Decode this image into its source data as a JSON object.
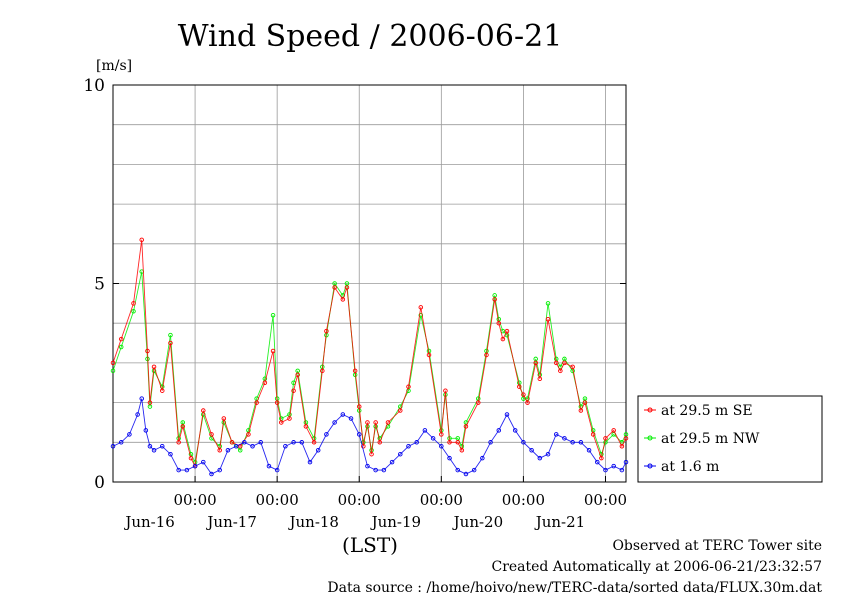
{
  "chart_data": {
    "type": "line",
    "title": "Wind Speed / 2006-06-21",
    "ylabel": "[m/s]",
    "xlabel": "(LST)",
    "ylim": [
      0,
      10
    ],
    "yticks": [
      0,
      5,
      10
    ],
    "xlim": [
      0,
      6.25
    ],
    "x_unit_note": "days from Jun-15 18:00 LST",
    "midnight_ticks": [
      {
        "x": 1,
        "time": "00:00",
        "date": "Jun-16"
      },
      {
        "x": 2,
        "time": "00:00",
        "date": "Jun-17"
      },
      {
        "x": 3,
        "time": "00:00",
        "date": "Jun-18"
      },
      {
        "x": 4,
        "time": "00:00",
        "date": "Jun-19"
      },
      {
        "x": 5,
        "time": "00:00",
        "date": "Jun-20"
      },
      {
        "x": 6,
        "time": "00:00",
        "date": "Jun-21"
      }
    ],
    "grid": true,
    "legend_position": "right",
    "series": [
      {
        "name": "at 29.5 m SE",
        "color": "#ff0000",
        "marker": "circle",
        "x": [
          0.0,
          0.1,
          0.25,
          0.35,
          0.42,
          0.45,
          0.5,
          0.6,
          0.7,
          0.8,
          0.85,
          0.95,
          1.0,
          1.1,
          1.2,
          1.3,
          1.35,
          1.45,
          1.55,
          1.65,
          1.75,
          1.85,
          1.95,
          2.0,
          2.05,
          2.15,
          2.2,
          2.25,
          2.35,
          2.45,
          2.55,
          2.6,
          2.7,
          2.8,
          2.85,
          2.95,
          3.0,
          3.05,
          3.1,
          3.15,
          3.2,
          3.25,
          3.35,
          3.5,
          3.6,
          3.75,
          3.85,
          4.0,
          4.05,
          4.1,
          4.2,
          4.25,
          4.3,
          4.45,
          4.55,
          4.65,
          4.7,
          4.75,
          4.8,
          4.95,
          5.0,
          5.05,
          5.15,
          5.2,
          5.3,
          5.4,
          5.45,
          5.5,
          5.6,
          5.7,
          5.75,
          5.85,
          5.95,
          6.0,
          6.1,
          6.2,
          6.25
        ],
        "y": [
          3.0,
          3.6,
          4.5,
          6.1,
          3.3,
          2.0,
          2.9,
          2.3,
          3.5,
          1.0,
          1.4,
          0.6,
          0.4,
          1.8,
          1.2,
          0.8,
          1.6,
          1.0,
          0.9,
          1.2,
          2.0,
          2.5,
          3.3,
          2.0,
          1.5,
          1.6,
          2.3,
          2.7,
          1.4,
          1.0,
          2.8,
          3.8,
          4.9,
          4.6,
          4.9,
          2.8,
          1.9,
          0.9,
          1.5,
          0.7,
          1.5,
          1.0,
          1.5,
          1.8,
          2.4,
          4.4,
          3.2,
          1.2,
          2.3,
          1.0,
          1.0,
          0.8,
          1.4,
          2.0,
          3.2,
          4.6,
          4.0,
          3.6,
          3.8,
          2.4,
          2.2,
          2.0,
          3.0,
          2.6,
          4.1,
          3.0,
          2.8,
          3.0,
          2.9,
          1.8,
          2.0,
          1.2,
          0.6,
          1.1,
          1.3,
          0.9,
          1.1
        ]
      },
      {
        "name": "at 29.5 m NW",
        "color": "#00ee00",
        "marker": "circle",
        "x": [
          0.0,
          0.1,
          0.25,
          0.35,
          0.42,
          0.45,
          0.5,
          0.6,
          0.7,
          0.8,
          0.85,
          0.95,
          1.0,
          1.1,
          1.2,
          1.3,
          1.35,
          1.45,
          1.55,
          1.65,
          1.75,
          1.85,
          1.95,
          2.0,
          2.05,
          2.15,
          2.2,
          2.25,
          2.35,
          2.45,
          2.55,
          2.6,
          2.7,
          2.8,
          2.85,
          2.95,
          3.0,
          3.05,
          3.1,
          3.15,
          3.2,
          3.25,
          3.35,
          3.5,
          3.6,
          3.75,
          3.85,
          4.0,
          4.05,
          4.1,
          4.2,
          4.25,
          4.3,
          4.45,
          4.55,
          4.65,
          4.7,
          4.75,
          4.8,
          4.95,
          5.0,
          5.05,
          5.15,
          5.2,
          5.3,
          5.4,
          5.45,
          5.5,
          5.6,
          5.7,
          5.75,
          5.85,
          5.95,
          6.0,
          6.1,
          6.2,
          6.25
        ],
        "y": [
          2.8,
          3.4,
          4.3,
          5.3,
          3.1,
          1.9,
          2.8,
          2.4,
          3.7,
          1.1,
          1.5,
          0.7,
          0.5,
          1.7,
          1.1,
          0.9,
          1.5,
          1.0,
          0.8,
          1.3,
          2.1,
          2.6,
          4.2,
          2.1,
          1.6,
          1.7,
          2.5,
          2.8,
          1.5,
          1.1,
          2.9,
          3.7,
          5.0,
          4.7,
          5.0,
          2.7,
          1.8,
          1.0,
          1.4,
          0.8,
          1.4,
          1.1,
          1.4,
          1.9,
          2.3,
          4.2,
          3.3,
          1.3,
          2.2,
          1.1,
          1.1,
          0.9,
          1.5,
          2.1,
          3.3,
          4.7,
          4.1,
          3.8,
          3.7,
          2.5,
          2.1,
          2.1,
          3.1,
          2.7,
          4.5,
          3.1,
          2.9,
          3.1,
          2.8,
          1.9,
          2.1,
          1.3,
          0.7,
          1.0,
          1.2,
          1.0,
          1.2
        ]
      },
      {
        "name": "at 1.6 m",
        "color": "#0000ee",
        "marker": "circle",
        "x": [
          0.0,
          0.1,
          0.2,
          0.3,
          0.35,
          0.4,
          0.45,
          0.5,
          0.6,
          0.7,
          0.8,
          0.9,
          1.0,
          1.1,
          1.2,
          1.3,
          1.4,
          1.5,
          1.6,
          1.7,
          1.8,
          1.9,
          2.0,
          2.1,
          2.2,
          2.3,
          2.4,
          2.5,
          2.6,
          2.7,
          2.8,
          2.9,
          3.0,
          3.1,
          3.2,
          3.3,
          3.4,
          3.5,
          3.6,
          3.7,
          3.8,
          3.9,
          4.0,
          4.1,
          4.2,
          4.3,
          4.4,
          4.5,
          4.6,
          4.7,
          4.8,
          4.9,
          5.0,
          5.1,
          5.2,
          5.3,
          5.4,
          5.5,
          5.6,
          5.7,
          5.8,
          5.9,
          6.0,
          6.1,
          6.2,
          6.25
        ],
        "y": [
          0.9,
          1.0,
          1.2,
          1.7,
          2.1,
          1.3,
          0.9,
          0.8,
          0.9,
          0.7,
          0.3,
          0.3,
          0.4,
          0.5,
          0.2,
          0.3,
          0.8,
          0.9,
          1.0,
          0.9,
          1.0,
          0.4,
          0.3,
          0.9,
          1.0,
          1.0,
          0.5,
          0.8,
          1.2,
          1.5,
          1.7,
          1.6,
          1.2,
          0.4,
          0.3,
          0.3,
          0.5,
          0.7,
          0.9,
          1.0,
          1.3,
          1.1,
          0.9,
          0.6,
          0.3,
          0.2,
          0.3,
          0.6,
          1.0,
          1.3,
          1.7,
          1.3,
          1.0,
          0.8,
          0.6,
          0.7,
          1.2,
          1.1,
          1.0,
          1.0,
          0.8,
          0.5,
          0.3,
          0.4,
          0.3,
          0.5
        ]
      }
    ]
  },
  "footer": {
    "line1": "Observed at TERC Tower site",
    "line2": "Created Automatically at 2006-06-21/23:32:57",
    "line3": "Data source : /home/hoivo/new/TERC-data/sorted data/FLUX.30m.dat"
  }
}
